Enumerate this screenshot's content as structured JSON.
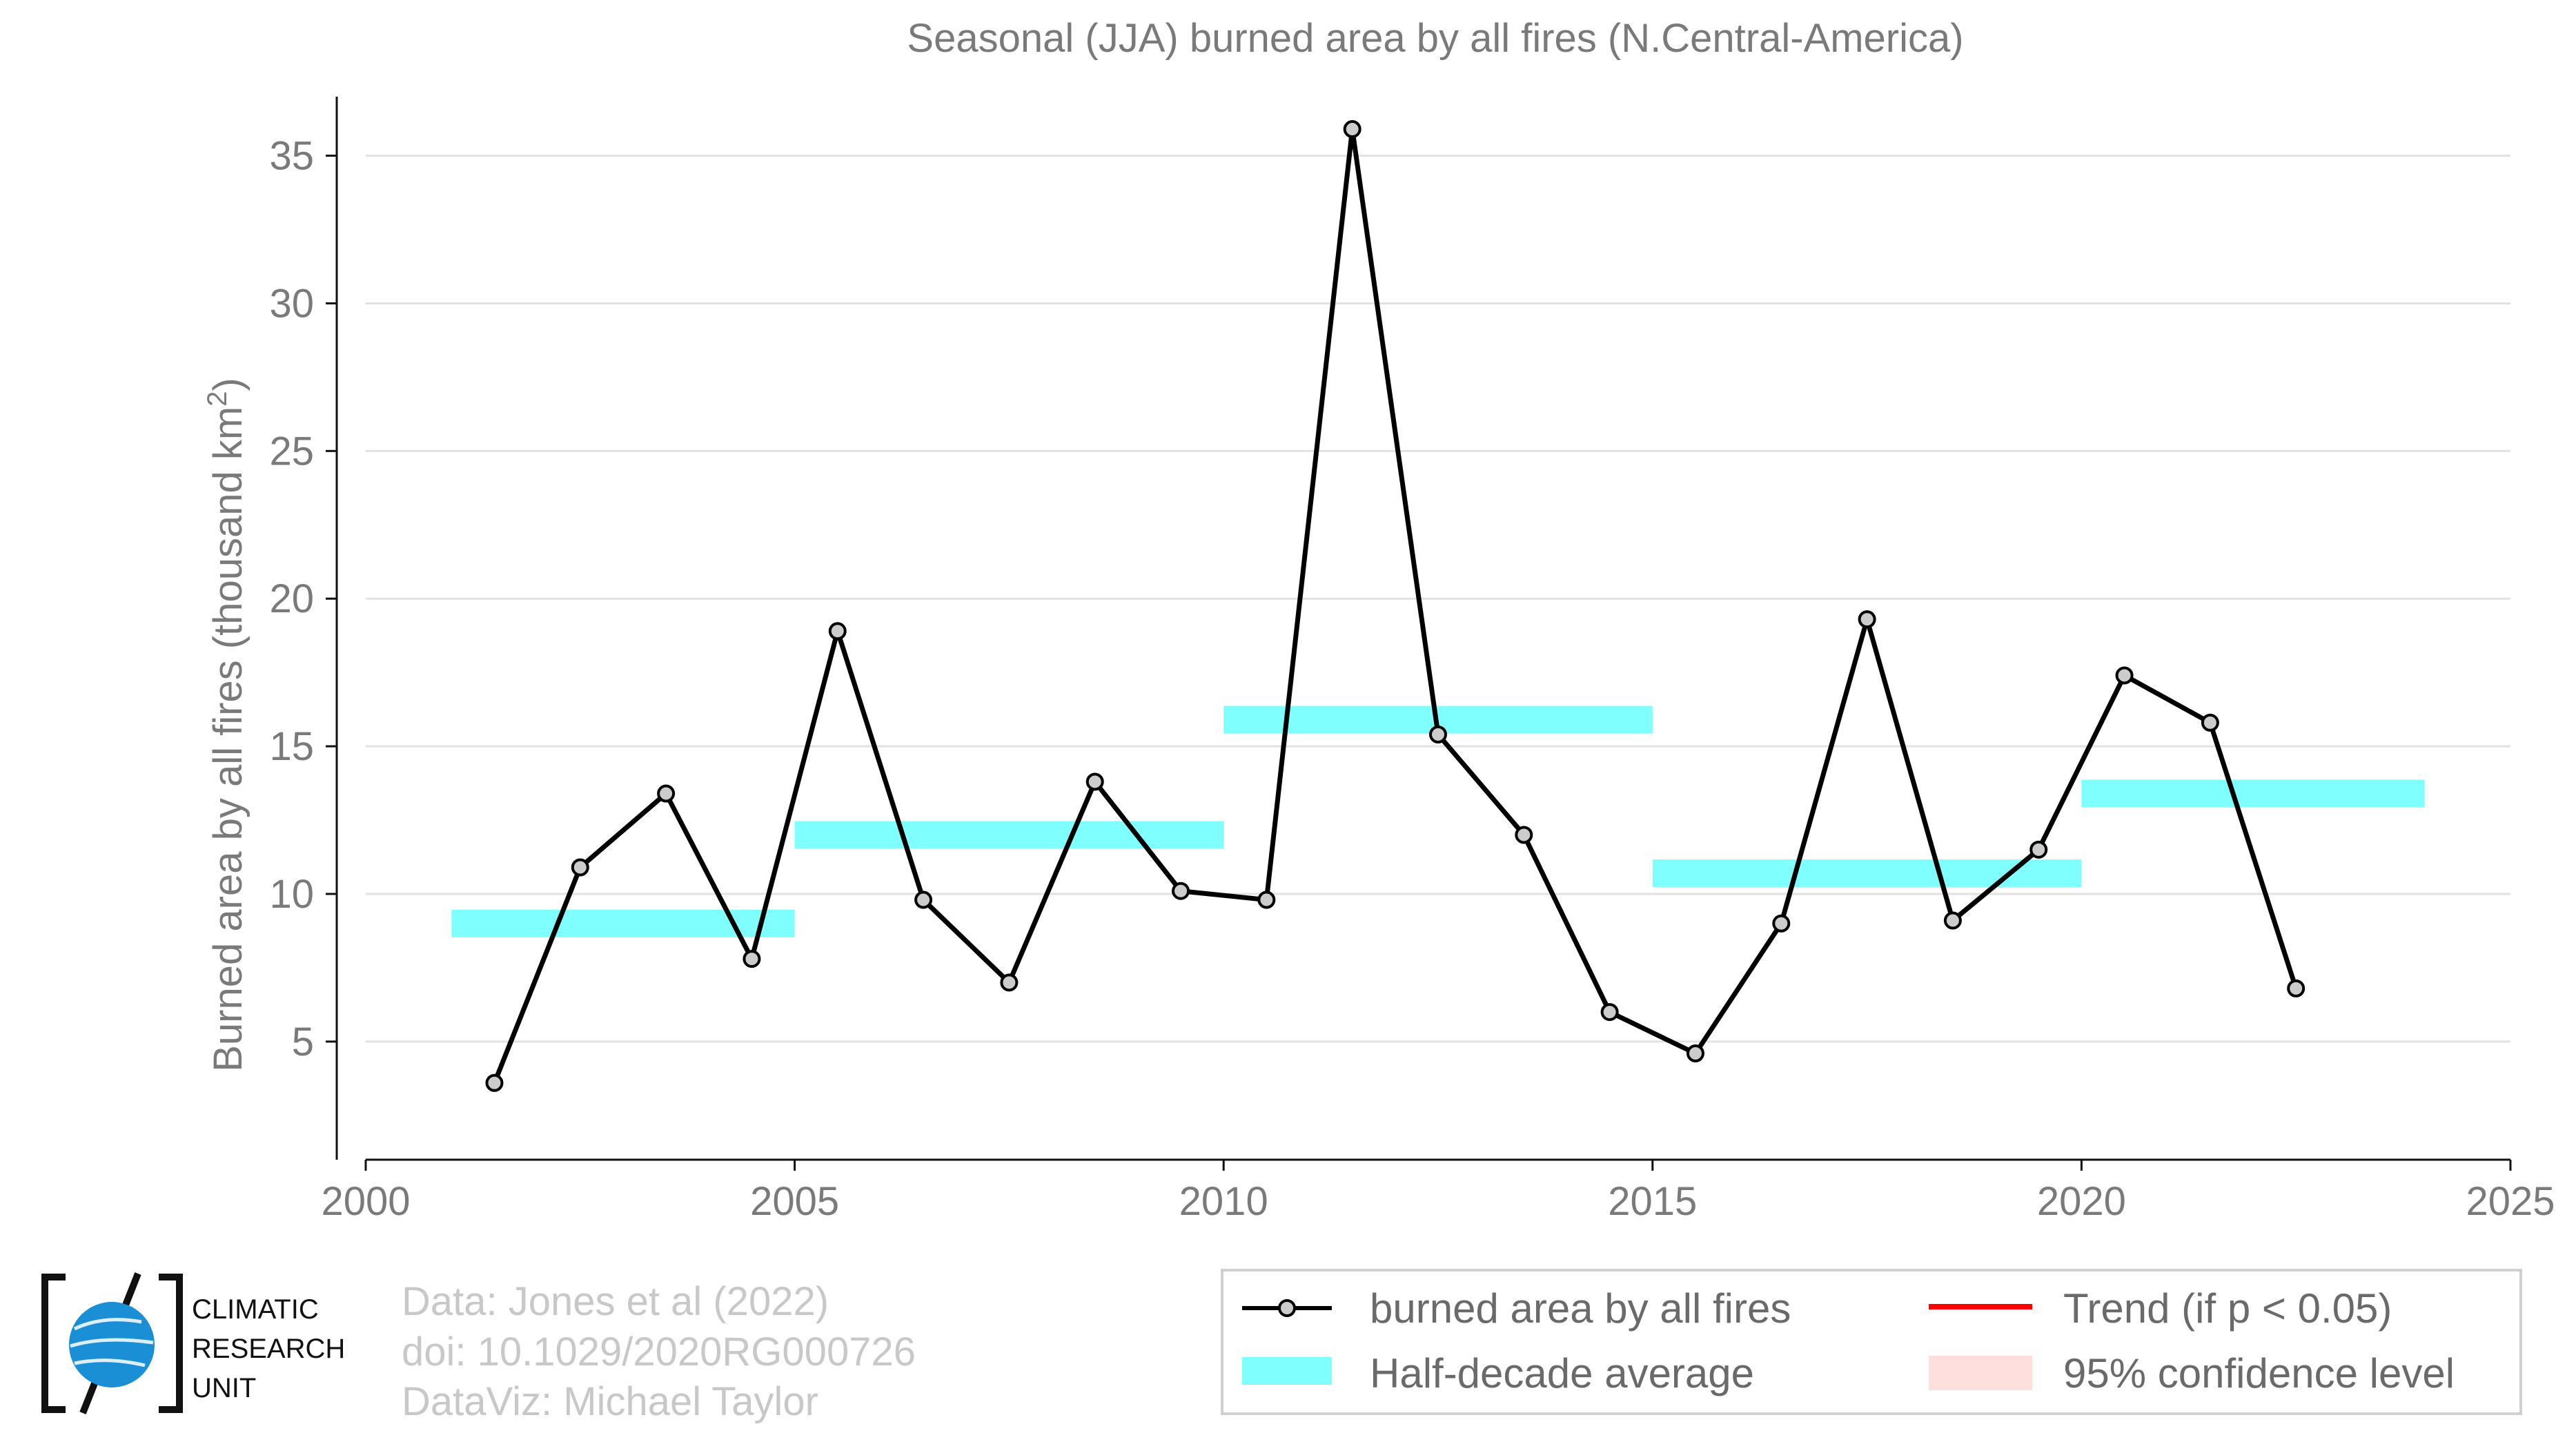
{
  "chart_data": {
    "type": "line",
    "title": "Seasonal (JJA) burned area by all fires (N.Central-America)",
    "ylabel": "Burned area by all fires (thousand km",
    "ylabel_sup": "2",
    "ylabel_end": ")",
    "xlabel": "",
    "xlim": [
      2000,
      2025
    ],
    "ylim": [
      1,
      37
    ],
    "x_ticks": [
      "2000",
      "2005",
      "2010",
      "2015",
      "2020",
      "2025"
    ],
    "y_ticks": [
      "5",
      "10",
      "15",
      "20",
      "25",
      "30",
      "35"
    ],
    "grid": "horizontal",
    "series": [
      {
        "name": "burned area by all fires",
        "color": "#000000",
        "marker_fill": "#cccccc",
        "x": [
          2001.5,
          2002.5,
          2003.5,
          2004.5,
          2005.5,
          2006.5,
          2007.5,
          2008.5,
          2009.5,
          2010.5,
          2011.5,
          2012.5,
          2013.5,
          2014.5,
          2015.5,
          2016.5,
          2017.5,
          2018.5,
          2019.5,
          2020.5,
          2021.5,
          2022.5
        ],
        "values": [
          3.6,
          10.9,
          13.4,
          7.8,
          18.9,
          9.8,
          7.0,
          13.8,
          10.1,
          9.8,
          35.9,
          15.4,
          12.0,
          6.0,
          4.6,
          9.0,
          19.3,
          9.1,
          11.5,
          17.4,
          15.8,
          6.8
        ]
      }
    ],
    "half_decade_averages": {
      "name": "Half-decade average",
      "color": "#80ffff",
      "segments": [
        {
          "x0": 2001,
          "x1": 2005,
          "value": 9.0
        },
        {
          "x0": 2005,
          "x1": 2010,
          "value": 12.0
        },
        {
          "x0": 2010,
          "x1": 2015,
          "value": 15.9
        },
        {
          "x0": 2015,
          "x1": 2020,
          "value": 10.7
        },
        {
          "x0": 2020,
          "x1": 2024,
          "value": 13.4
        }
      ]
    },
    "legend": {
      "placement": "bottom-right",
      "entries": [
        {
          "label": "burned area by all fires",
          "kind": "line-marker",
          "color": "#000000"
        },
        {
          "label": "Trend (if p < 0.05)",
          "kind": "line",
          "color": "#ff0000"
        },
        {
          "label": "Half-decade average",
          "kind": "band",
          "color": "#80ffff"
        },
        {
          "label": "95% confidence level",
          "kind": "patch",
          "color": "#ffdede"
        }
      ]
    }
  },
  "credits": {
    "line1": "Data: Jones et al (2022)",
    "line2": "doi: 10.1029/2020RG000726",
    "line3": "DataViz: Michael Taylor"
  },
  "logo": {
    "line1": "CLIMATIC",
    "line2": "RESEARCH",
    "line3": "UNIT",
    "color": "#1a8fd6"
  }
}
